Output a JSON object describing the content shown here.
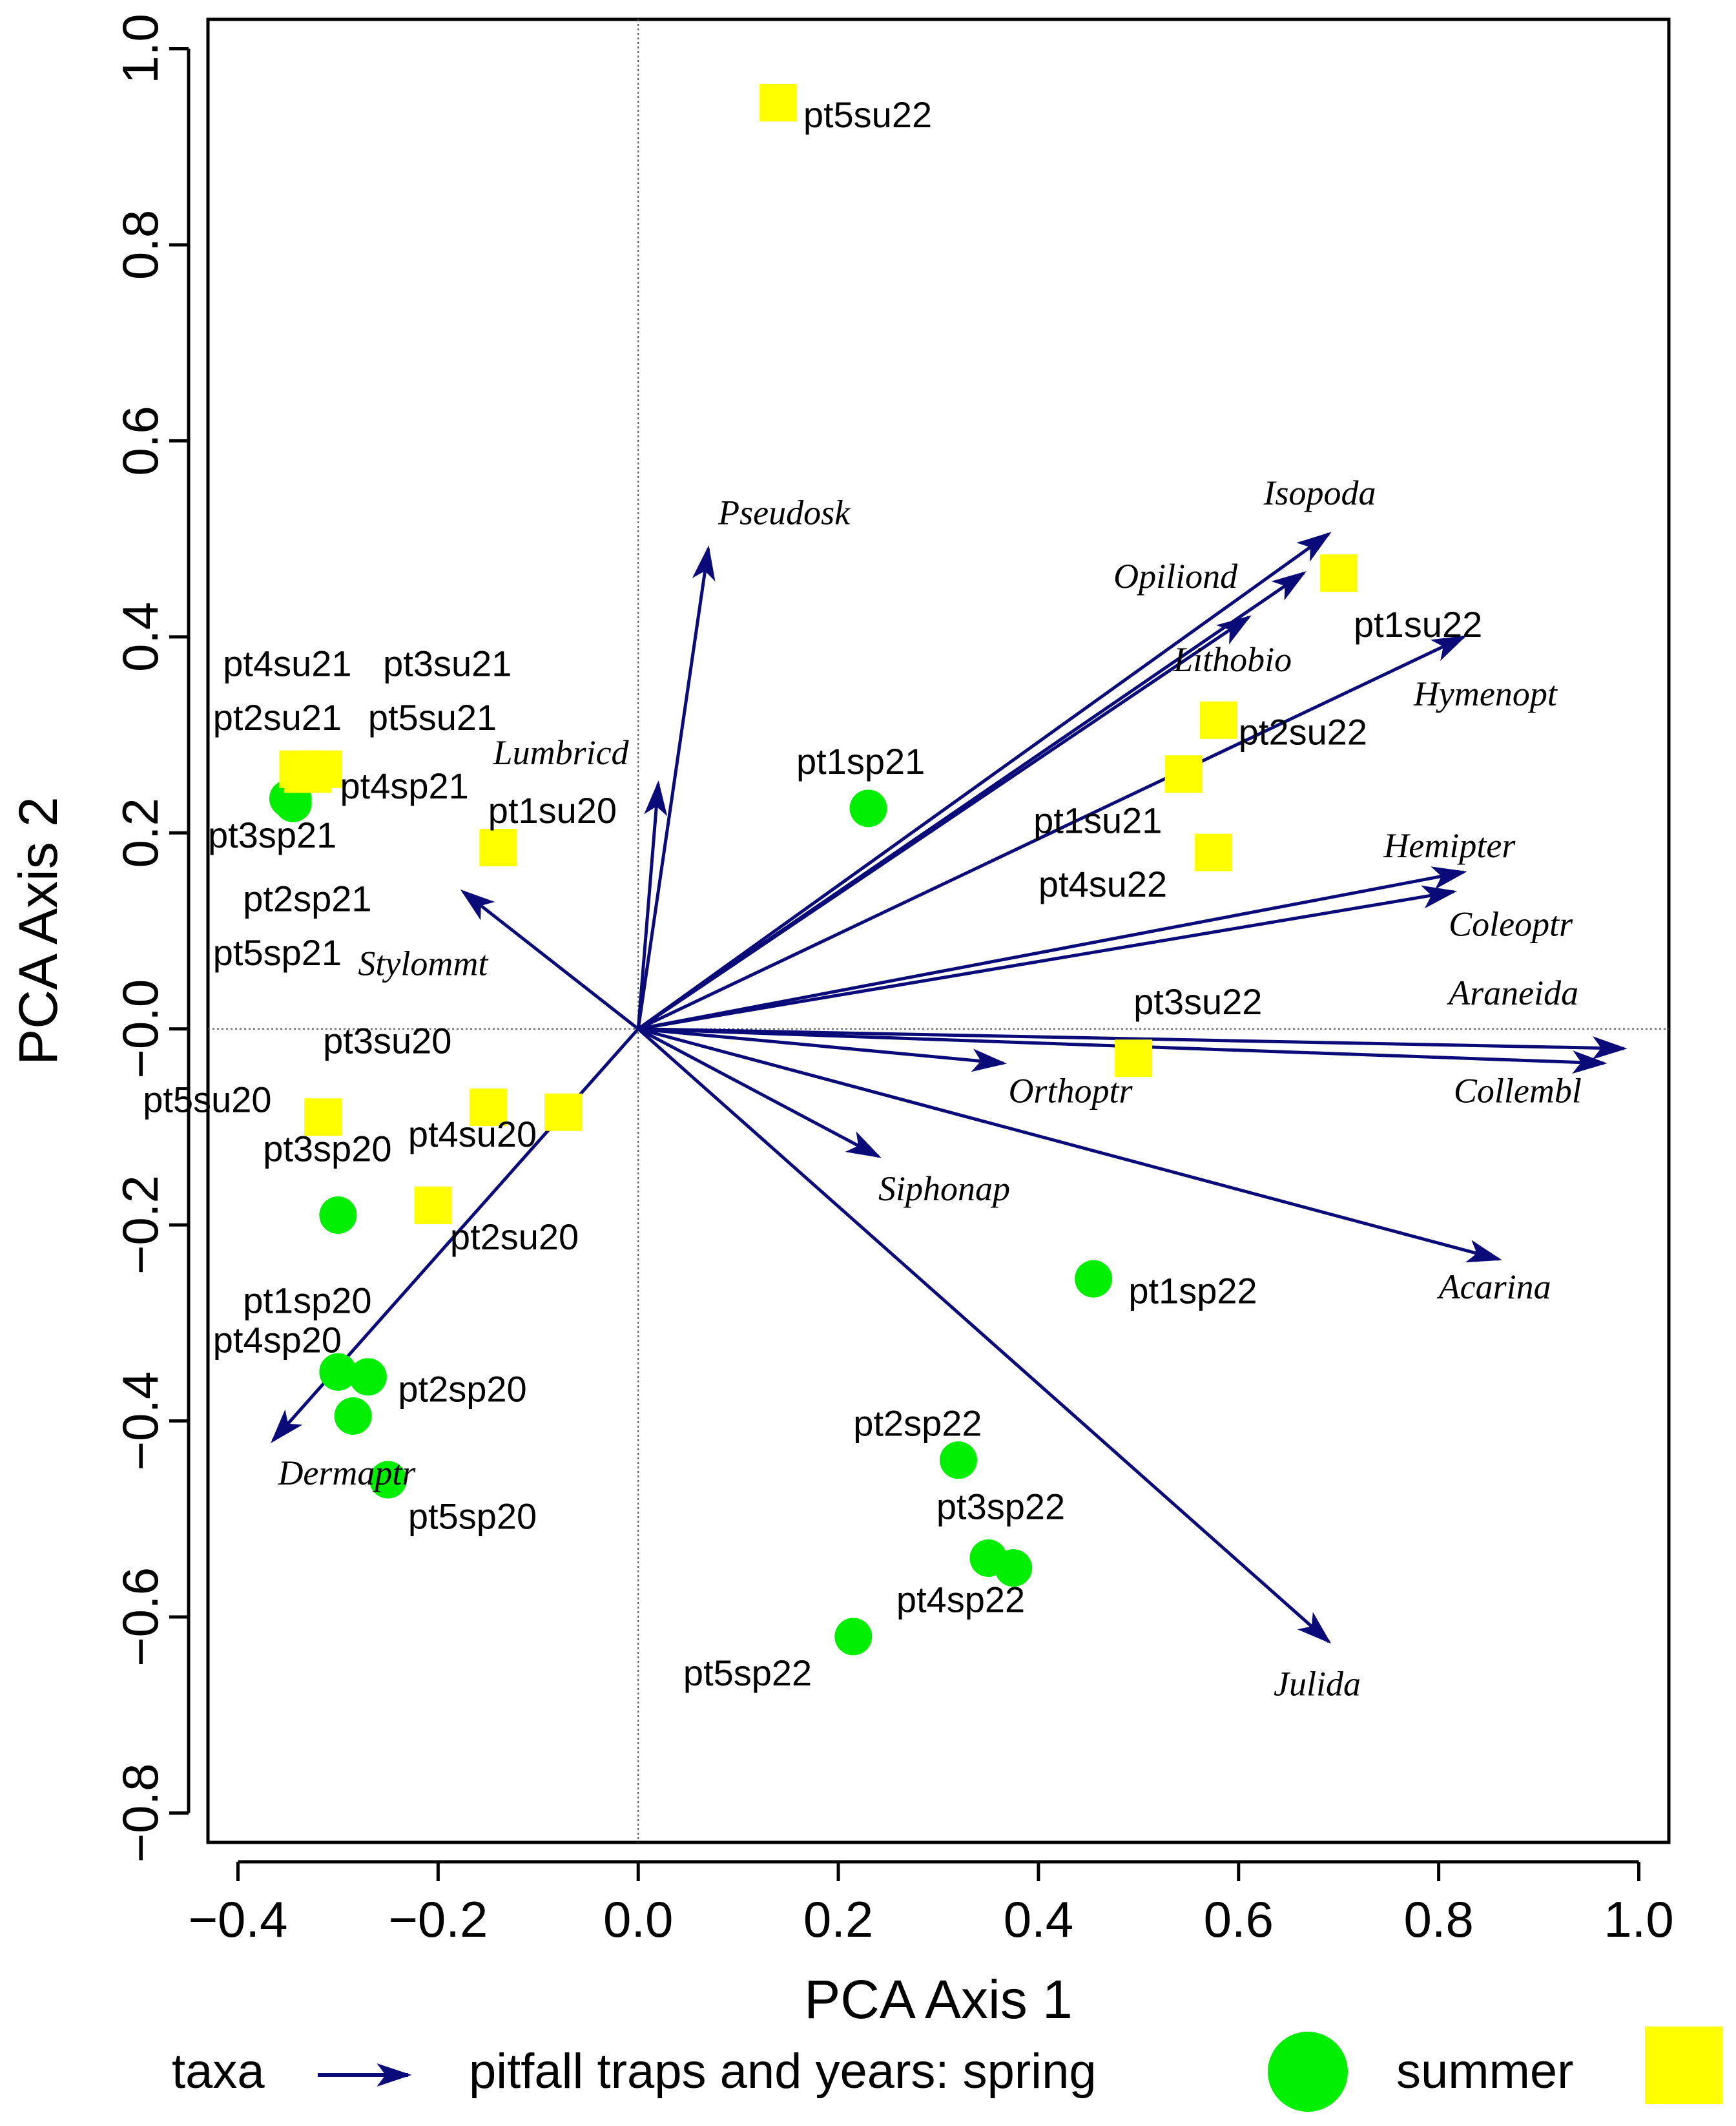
{
  "chart_data": {
    "type": "scatter",
    "xlabel": "PCA Axis 1",
    "ylabel": "PCA Axis 2",
    "xlim": [
      -0.43,
      1.03
    ],
    "ylim": [
      -0.83,
      1.03
    ],
    "x_ticks": [
      -0.4,
      -0.2,
      0.0,
      0.2,
      0.4,
      0.6,
      0.8,
      1.0
    ],
    "y_ticks": [
      -0.8,
      -0.6,
      -0.4,
      -0.2,
      0.0,
      0.2,
      0.4,
      0.6,
      0.8,
      1.0
    ],
    "x_tick_labels": [
      "−0.4",
      "−0.2",
      "0.0",
      "0.2",
      "0.4",
      "0.6",
      "0.8",
      "1.0"
    ],
    "y_tick_labels": [
      "−0.8",
      "−0.6",
      "−0.4",
      "−0.2",
      "−0.0",
      "0.2",
      "0.4",
      "0.6",
      "0.8",
      "1.0"
    ],
    "grid": false,
    "zero_lines": true,
    "colors": {
      "spring": "#00ee00",
      "summer": "#ffff00",
      "arrow": "#0a0a78"
    },
    "series": [
      {
        "name": "spring",
        "marker": "circle",
        "points": [
          {
            "label": "pt1sp21",
            "x": 0.23,
            "y": 0.225
          },
          {
            "label": "pt3sp21",
            "x": -0.35,
            "y": 0.235
          },
          {
            "label": "pt2sp21",
            "x": -0.345,
            "y": 0.235
          },
          {
            "label": "pt5sp21",
            "x": -0.345,
            "y": 0.23
          },
          {
            "label": "pt3sp20",
            "x": -0.3,
            "y": -0.19
          },
          {
            "label": "pt1sp20",
            "x": -0.3,
            "y": -0.35
          },
          {
            "label": "pt4sp20",
            "x": -0.3,
            "y": -0.35
          },
          {
            "label": "pt2sp20",
            "x": -0.27,
            "y": -0.355
          },
          {
            "label": "",
            "x": -0.285,
            "y": -0.395
          },
          {
            "label": "pt5sp20",
            "x": -0.25,
            "y": -0.46
          },
          {
            "label": "pt1sp22",
            "x": 0.455,
            "y": -0.255
          },
          {
            "label": "pt2sp22",
            "x": 0.32,
            "y": -0.44
          },
          {
            "label": "pt3sp22",
            "x": 0.35,
            "y": -0.54
          },
          {
            "label": "pt4sp22",
            "x": 0.375,
            "y": -0.55
          },
          {
            "label": "pt5sp22",
            "x": 0.215,
            "y": -0.62
          }
        ]
      },
      {
        "name": "summer",
        "marker": "square",
        "points": [
          {
            "label": "pt5su22",
            "x": 0.14,
            "y": 0.945
          },
          {
            "label": "pt1su22",
            "x": 0.7,
            "y": 0.465
          },
          {
            "label": "pt2su22",
            "x": 0.58,
            "y": 0.315
          },
          {
            "label": "pt1su21",
            "x": 0.545,
            "y": 0.26
          },
          {
            "label": "pt4su22",
            "x": 0.575,
            "y": 0.18
          },
          {
            "label": "pt3su22",
            "x": 0.495,
            "y": -0.03
          },
          {
            "label": "pt4su21",
            "x": -0.34,
            "y": 0.265
          },
          {
            "label": "pt3su21",
            "x": -0.33,
            "y": 0.265
          },
          {
            "label": "pt2su21",
            "x": -0.335,
            "y": 0.26
          },
          {
            "label": "pt5su21",
            "x": -0.325,
            "y": 0.26
          },
          {
            "label": "pt4sp21",
            "x": -0.315,
            "y": 0.265
          },
          {
            "label": "pt1su20",
            "x": -0.14,
            "y": 0.185
          },
          {
            "label": "pt5su20",
            "x": -0.315,
            "y": -0.09
          },
          {
            "label": "pt3su20",
            "x": -0.15,
            "y": -0.08
          },
          {
            "label": "",
            "x": -0.075,
            "y": -0.085
          },
          {
            "label": "pt4su20",
            "x": -0.205,
            "y": -0.18
          },
          {
            "label": "pt2su20",
            "x": -0.205,
            "y": -0.18
          }
        ]
      }
    ],
    "point_labels": [
      {
        "text": "pt5su22",
        "x": 0.165,
        "y": 0.92
      },
      {
        "text": "pt1su22",
        "x": 0.715,
        "y": 0.4
      },
      {
        "text": "pt2su22",
        "x": 0.6,
        "y": 0.29
      },
      {
        "text": "pt1su21",
        "x": 0.395,
        "y": 0.2
      },
      {
        "text": "pt4su22",
        "x": 0.4,
        "y": 0.135
      },
      {
        "text": "pt3su22",
        "x": 0.495,
        "y": 0.015
      },
      {
        "text": "pt1sp21",
        "x": 0.158,
        "y": 0.26
      },
      {
        "text": "pt4su21",
        "x": -0.415,
        "y": 0.36
      },
      {
        "text": "pt3su21",
        "x": -0.255,
        "y": 0.36
      },
      {
        "text": "pt2su21",
        "x": -0.425,
        "y": 0.305
      },
      {
        "text": "pt5su21",
        "x": -0.27,
        "y": 0.305
      },
      {
        "text": "pt4sp21",
        "x": -0.298,
        "y": 0.235
      },
      {
        "text": "pt1su20",
        "x": -0.15,
        "y": 0.21
      },
      {
        "text": "pt3sp21",
        "x": -0.43,
        "y": 0.185
      },
      {
        "text": "pt2sp21",
        "x": -0.395,
        "y": 0.12
      },
      {
        "text": "pt5sp21",
        "x": -0.425,
        "y": 0.065
      },
      {
        "text": "pt3su20",
        "x": -0.315,
        "y": -0.025
      },
      {
        "text": "pt5su20",
        "x": -0.495,
        "y": -0.085
      },
      {
        "text": "pt4su20",
        "x": -0.23,
        "y": -0.12
      },
      {
        "text": "pt3sp20",
        "x": -0.375,
        "y": -0.135
      },
      {
        "text": "pt2su20",
        "x": -0.188,
        "y": -0.225
      },
      {
        "text": "pt1sp20",
        "x": -0.395,
        "y": -0.29
      },
      {
        "text": "pt4sp20",
        "x": -0.425,
        "y": -0.33
      },
      {
        "text": "pt2sp20",
        "x": -0.24,
        "y": -0.38
      },
      {
        "text": "pt5sp20",
        "x": -0.23,
        "y": -0.51
      },
      {
        "text": "pt1sp22",
        "x": 0.49,
        "y": -0.28
      },
      {
        "text": "pt2sp22",
        "x": 0.215,
        "y": -0.415
      },
      {
        "text": "pt3sp22",
        "x": 0.298,
        "y": -0.5
      },
      {
        "text": "pt4sp22",
        "x": 0.258,
        "y": -0.595
      },
      {
        "text": "pt5sp22",
        "x": 0.045,
        "y": -0.67
      }
    ],
    "arrows": [
      {
        "label": "Pseudosk",
        "x": 0.07,
        "y": 0.49,
        "lx": 0.08,
        "ly": 0.515
      },
      {
        "label": "Lumbricd",
        "x": 0.02,
        "y": 0.25,
        "lx": -0.145,
        "ly": 0.27
      },
      {
        "label": "Stylommt",
        "x": -0.175,
        "y": 0.14,
        "lx": -0.28,
        "ly": 0.055
      },
      {
        "label": "Dermaptr",
        "x": -0.365,
        "y": -0.42,
        "lx": -0.36,
        "ly": -0.465
      },
      {
        "label": "Isopoda",
        "x": 0.69,
        "y": 0.505,
        "lx": 0.625,
        "ly": 0.535
      },
      {
        "label": "Opiliond",
        "x": 0.665,
        "y": 0.465,
        "lx": 0.475,
        "ly": 0.45
      },
      {
        "label": "Lithobio",
        "x": 0.61,
        "y": 0.42,
        "lx": 0.535,
        "ly": 0.365
      },
      {
        "label": "Hymenopt",
        "x": 0.825,
        "y": 0.4,
        "lx": 0.775,
        "ly": 0.33
      },
      {
        "label": "Hemipter",
        "x": 0.825,
        "y": 0.16,
        "lx": 0.745,
        "ly": 0.175
      },
      {
        "label": "Coleoptr",
        "x": 0.815,
        "y": 0.14,
        "lx": 0.81,
        "ly": 0.095
      },
      {
        "label": "Araneida",
        "x": 0.985,
        "y": -0.02,
        "lx": 0.81,
        "ly": 0.025
      },
      {
        "label": "Collembl",
        "x": 0.965,
        "y": -0.035,
        "lx": 0.815,
        "ly": -0.075
      },
      {
        "label": "Orthoptr",
        "x": 0.365,
        "y": -0.035,
        "lx": 0.37,
        "ly": -0.075
      },
      {
        "label": "Siphonap",
        "x": 0.24,
        "y": -0.13,
        "lx": 0.24,
        "ly": -0.175
      },
      {
        "label": "Acarina",
        "x": 0.86,
        "y": -0.235,
        "lx": 0.8,
        "ly": -0.275
      },
      {
        "label": "Julida",
        "x": 0.69,
        "y": -0.625,
        "lx": 0.635,
        "ly": -0.68
      }
    ],
    "legend": {
      "position": "bottom",
      "taxa_label": "taxa",
      "traps_label": "pitfall traps and years: spring",
      "summer_label": "summer"
    }
  }
}
